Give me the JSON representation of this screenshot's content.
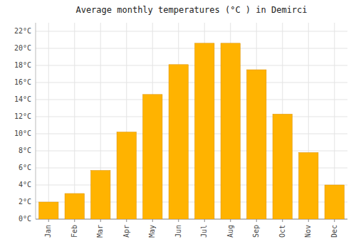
{
  "chart_data": {
    "type": "bar",
    "title": "Average monthly temperatures (°C ) in Demirci",
    "categories": [
      "Jan",
      "Feb",
      "Mar",
      "Apr",
      "May",
      "Jun",
      "Jul",
      "Aug",
      "Sep",
      "Oct",
      "Nov",
      "Dec"
    ],
    "values": [
      2.0,
      3.0,
      5.7,
      10.2,
      14.6,
      18.1,
      20.6,
      20.6,
      17.5,
      12.3,
      7.8,
      4.0
    ],
    "color": "#FFB300",
    "ylim": [
      0,
      23
    ],
    "yticks": [
      {
        "value": 0,
        "label": "0°C"
      },
      {
        "value": 2,
        "label": "2°C"
      },
      {
        "value": 4,
        "label": "4°C"
      },
      {
        "value": 6,
        "label": "6°C"
      },
      {
        "value": 8,
        "label": "8°C"
      },
      {
        "value": 10,
        "label": "10°C"
      },
      {
        "value": 12,
        "label": "12°C"
      },
      {
        "value": 14,
        "label": "14°C"
      },
      {
        "value": 16,
        "label": "16°C"
      },
      {
        "value": 18,
        "label": "18°C"
      },
      {
        "value": 20,
        "label": "20°C"
      },
      {
        "value": 22,
        "label": "22°C"
      }
    ],
    "grid": true
  }
}
